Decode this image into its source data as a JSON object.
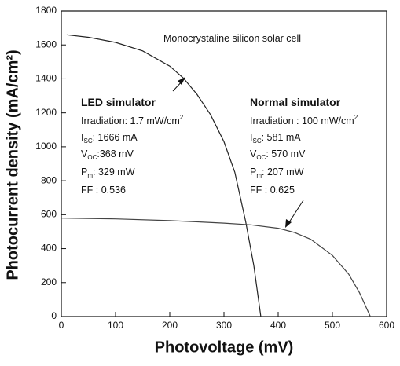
{
  "chart_data": {
    "type": "line",
    "xlabel": "Photovoltage (mV)",
    "ylabel": "Photocurrent density (mA/cm²)",
    "xlim": [
      0,
      600
    ],
    "ylim": [
      0,
      1800
    ],
    "xticks": [
      0,
      100,
      200,
      300,
      400,
      500,
      600
    ],
    "yticks": [
      0,
      200,
      400,
      600,
      800,
      1000,
      1200,
      1400,
      1600,
      1800
    ],
    "series": [
      {
        "color": "#222222",
        "x": [
          10,
          50,
          100,
          150,
          200,
          225,
          250,
          275,
          300,
          320,
          340,
          355,
          368
        ],
        "values": [
          1660,
          1645,
          1615,
          1565,
          1475,
          1405,
          1310,
          1190,
          1030,
          850,
          560,
          300,
          0
        ]
      },
      {
        "color": "#444444",
        "x": [
          0,
          100,
          200,
          300,
          350,
          400,
          430,
          460,
          500,
          530,
          550,
          570
        ],
        "values": [
          580,
          575,
          565,
          550,
          540,
          520,
          495,
          455,
          360,
          250,
          140,
          0
        ]
      }
    ],
    "annotations": [
      [
        {
          "t": "Monocrystaline silicon solar cell"
        }
      ],
      [
        {
          "t": "LED simulator",
          "bold": true
        }
      ],
      [
        {
          "t": "Irradiation: 1.7 mW/cm"
        },
        {
          "t": "2",
          "sup": true
        }
      ],
      [
        {
          "t": "I"
        },
        {
          "t": "SC",
          "sub": true
        },
        {
          "t": ": 1666 mA"
        }
      ],
      [
        {
          "t": "V"
        },
        {
          "t": "OC",
          "sub": true
        },
        {
          "t": ":368 mV"
        }
      ],
      [
        {
          "t": "P"
        },
        {
          "t": "m",
          "sub": true
        },
        {
          "t": ":  329 mW"
        }
      ],
      [
        {
          "t": "FF : 0.536"
        }
      ],
      [
        {
          "t": "Normal simulator",
          "bold": true
        }
      ],
      [
        {
          "t": "Irradiation : 100 mW/cm"
        },
        {
          "t": "2",
          "sup": true
        }
      ],
      [
        {
          "t": "I"
        },
        {
          "t": "SC",
          "sub": true
        },
        {
          "t": ": 581 mA"
        }
      ],
      [
        {
          "t": "V"
        },
        {
          "t": "OC",
          "sub": true
        },
        {
          "t": ": 570 mV"
        }
      ],
      [
        {
          "t": "P"
        },
        {
          "t": "m",
          "sub": true
        },
        {
          "t": ":  207 mW"
        }
      ],
      [
        {
          "t": "FF : 0.625"
        }
      ]
    ]
  }
}
